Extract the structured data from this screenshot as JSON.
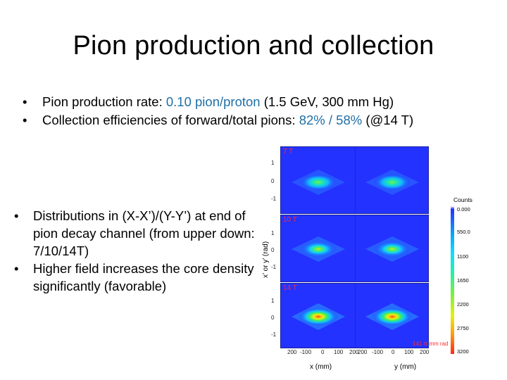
{
  "slide": {
    "title": "Pion production and collection",
    "top_bullets": [
      {
        "prefix": "Pion production rate: ",
        "highlight": "0.10 pion/proton",
        "suffix": " (1.5 GeV, 300 mm Hg)"
      },
      {
        "prefix": "Collection efficiencies of forward/total pions: ",
        "highlight": "82% / 58%",
        "suffix": "  (@14 T)"
      }
    ],
    "left_bullets": [
      "Distributions in (X-X’)/(Y-Y’) at end of pion decay channel (from upper down: 7/10/14T)",
      "Higher field increases the core density significantly (favorable)"
    ]
  },
  "figure": {
    "y_axis_label": "x’ or y’ (rad)",
    "panels": [
      {
        "label": "7 T",
        "yticks": [
          "1",
          "0",
          "-1"
        ],
        "core_intensity": 0.55
      },
      {
        "label": "10 T",
        "yticks": [
          "1",
          "0",
          "-1"
        ],
        "core_intensity": 0.75
      },
      {
        "label": "14 T",
        "yticks": [
          "1",
          "0",
          "-1"
        ],
        "core_intensity": 1.0
      }
    ],
    "x_ticks_left": [
      "200",
      "-100",
      "0",
      "100",
      "200"
    ],
    "x_ticks_right": [
      "200",
      "-100",
      "0",
      "100",
      "200"
    ],
    "x_label_left": "x (mm)",
    "x_label_right": "y (mm)",
    "colorbar_title": "Counts",
    "colorbar_ticks": [
      "0.000",
      "550.0",
      "1100",
      "1650",
      "2200",
      "2750",
      "3200"
    ],
    "emittance_label": "141 π mm rad",
    "colors": {
      "panel_bg": "#2332ff",
      "panel_label": "#ff2a2a",
      "highlight_text": "#1f6fa6"
    }
  }
}
